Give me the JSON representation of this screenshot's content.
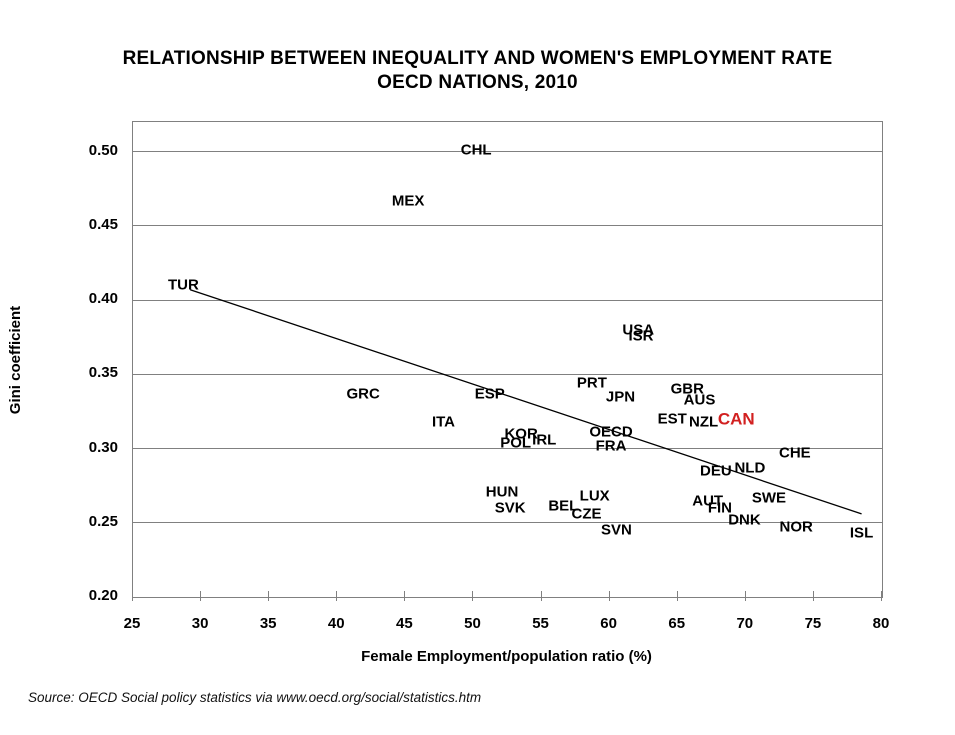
{
  "title": {
    "line1": "RELATIONSHIP BETWEEN INEQUALITY AND WOMEN'S EMPLOYMENT RATE",
    "line2": "OECD NATIONS, 2010"
  },
  "source": "Source: OECD Social policy statistics via www.oecd.org/social/statistics.htm",
  "colors": {
    "text": "#000000",
    "highlight_red": "#d22020",
    "gridline": "#808080",
    "trendline": "#000000",
    "background": "#ffffff"
  },
  "chart_data": {
    "type": "scatter",
    "title": "RELATIONSHIP BETWEEN INEQUALITY AND WOMEN'S EMPLOYMENT RATE — OECD NATIONS, 2010",
    "xlabel": "Female Employment/population ratio (%)",
    "ylabel": "Gini coefficient",
    "xlim": [
      25,
      80
    ],
    "ylim": [
      0.2,
      0.52
    ],
    "x_ticks": [
      25,
      30,
      35,
      40,
      45,
      50,
      55,
      60,
      65,
      70,
      75,
      80
    ],
    "y_ticks": [
      0.2,
      0.25,
      0.3,
      0.35,
      0.4,
      0.45,
      0.5
    ],
    "grid": "horizontal",
    "legend": "none",
    "marker": "label-only",
    "points": [
      {
        "label": "CHL",
        "x": 50.2,
        "y": 0.501
      },
      {
        "label": "MEX",
        "x": 45.2,
        "y": 0.467
      },
      {
        "label": "TUR",
        "x": 28.7,
        "y": 0.41
      },
      {
        "label": "USA",
        "x": 62.1,
        "y": 0.38
      },
      {
        "label": "ISR",
        "x": 62.3,
        "y": 0.376
      },
      {
        "label": "PRT",
        "x": 58.7,
        "y": 0.344
      },
      {
        "label": "GBR",
        "x": 65.7,
        "y": 0.34
      },
      {
        "label": "GRC",
        "x": 41.9,
        "y": 0.337
      },
      {
        "label": "ESP",
        "x": 51.2,
        "y": 0.337
      },
      {
        "label": "JPN",
        "x": 60.8,
        "y": 0.335
      },
      {
        "label": "AUS",
        "x": 66.6,
        "y": 0.333
      },
      {
        "label": "EST",
        "x": 64.6,
        "y": 0.32
      },
      {
        "label": "CAN",
        "x": 69.3,
        "y": 0.32,
        "color": "#d22020",
        "emphasis": true
      },
      {
        "label": "ITA",
        "x": 47.8,
        "y": 0.318
      },
      {
        "label": "NZL",
        "x": 66.9,
        "y": 0.318
      },
      {
        "label": "OECD",
        "x": 60.1,
        "y": 0.311
      },
      {
        "label": "KOR",
        "x": 53.5,
        "y": 0.31
      },
      {
        "label": "IRL",
        "x": 55.2,
        "y": 0.306
      },
      {
        "label": "POL",
        "x": 53.1,
        "y": 0.304
      },
      {
        "label": "FRA",
        "x": 60.1,
        "y": 0.302
      },
      {
        "label": "CHE",
        "x": 73.6,
        "y": 0.297
      },
      {
        "label": "NLD",
        "x": 70.3,
        "y": 0.287
      },
      {
        "label": "DEU",
        "x": 67.8,
        "y": 0.285
      },
      {
        "label": "HUN",
        "x": 52.1,
        "y": 0.271
      },
      {
        "label": "LUX",
        "x": 58.9,
        "y": 0.268
      },
      {
        "label": "SWE",
        "x": 71.7,
        "y": 0.267
      },
      {
        "label": "AUT",
        "x": 67.2,
        "y": 0.265
      },
      {
        "label": "BEL",
        "x": 56.6,
        "y": 0.261
      },
      {
        "label": "FIN",
        "x": 68.1,
        "y": 0.26
      },
      {
        "label": "SVK",
        "x": 52.7,
        "y": 0.26
      },
      {
        "label": "CZE",
        "x": 58.3,
        "y": 0.256
      },
      {
        "label": "DNK",
        "x": 69.9,
        "y": 0.252
      },
      {
        "label": "NOR",
        "x": 73.7,
        "y": 0.247
      },
      {
        "label": "SVN",
        "x": 60.5,
        "y": 0.245
      },
      {
        "label": "ISL",
        "x": 78.5,
        "y": 0.243
      }
    ],
    "trendline": {
      "x1": 29.2,
      "y1": 0.407,
      "x2": 78.5,
      "y2": 0.256
    }
  }
}
